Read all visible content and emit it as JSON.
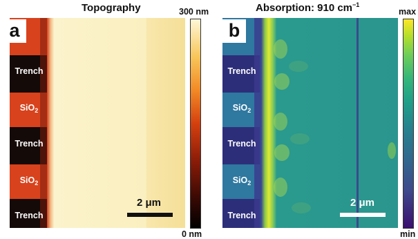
{
  "panel_a": {
    "letter": "a",
    "title": "Topography",
    "labels": [
      {
        "text": "Trench",
        "sub": ""
      },
      {
        "text": "SiO",
        "sub": "2"
      },
      {
        "text": "Trench",
        "sub": ""
      },
      {
        "text": "SiO",
        "sub": "2"
      },
      {
        "text": "Trench",
        "sub": ""
      }
    ],
    "scale_bar": "2 μm",
    "colorbar": {
      "max": "300 nm",
      "min": "0 nm"
    },
    "colors": {
      "trench": "#140a08",
      "sio2": "#d8421c",
      "edge": "#f4d8a4",
      "plateau_left": "#fbf2c6",
      "plateau_right": "#f6e09a"
    }
  },
  "panel_b": {
    "letter": "b",
    "title_prefix": "Absorption: 910 cm",
    "title_sup": "−1",
    "labels": [
      {
        "text": "Trench",
        "sub": ""
      },
      {
        "text": "SiO",
        "sub": "2"
      },
      {
        "text": "Trench",
        "sub": ""
      },
      {
        "text": "SiO",
        "sub": "2"
      },
      {
        "text": "Trench",
        "sub": ""
      }
    ],
    "scale_bar": "2 μm",
    "colorbar": {
      "max": "max",
      "min": "min"
    },
    "colors": {
      "trench": "#2d2e7a",
      "sio2": "#2f78a0",
      "edge": "#d6ea38",
      "field": "#2a9a8e",
      "line": "#3a4a8c"
    }
  }
}
